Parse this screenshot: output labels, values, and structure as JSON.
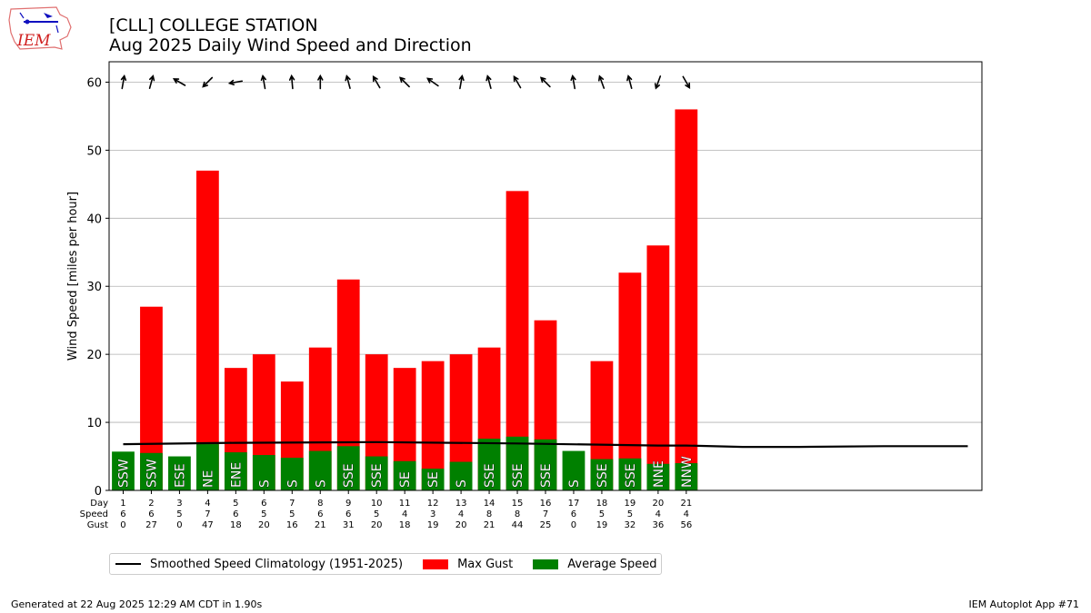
{
  "logo_text": "IEM",
  "title_line1": "[CLL] COLLEGE STATION",
  "title_line2": "Aug 2025 Daily Wind Speed and Direction",
  "footer_left": "Generated at 22 Aug 2025 12:29 AM CDT in 1.90s",
  "footer_right": "IEM Autoplot App #71",
  "colors": {
    "gust": "#ff0000",
    "speed": "#008000",
    "climo": "#000000"
  },
  "legend": [
    {
      "label": "Smoothed Speed Climatology (1951-2025)",
      "kind": "line",
      "color": "#000000"
    },
    {
      "label": "Max Gust",
      "kind": "box",
      "color": "#ff0000"
    },
    {
      "label": "Average Speed",
      "kind": "box",
      "color": "#008000"
    }
  ],
  "chart_data": {
    "type": "bar",
    "ylabel": "Wind Speed [miles per hour]",
    "ylim": [
      0,
      63
    ],
    "yticks": [
      0,
      10,
      20,
      30,
      40,
      50,
      60
    ],
    "xlim": [
      0.5,
      31.5
    ],
    "grid": "y",
    "table_row_labels": [
      "Day",
      "Speed",
      "Gust"
    ],
    "days": [
      1,
      2,
      3,
      4,
      5,
      6,
      7,
      8,
      9,
      10,
      11,
      12,
      13,
      14,
      15,
      16,
      17,
      18,
      19,
      20,
      21
    ],
    "speed_labels": [
      6,
      6,
      5,
      7,
      6,
      5,
      5,
      6,
      6,
      5,
      4,
      3,
      4,
      8,
      8,
      7,
      6,
      5,
      5,
      4,
      4
    ],
    "gust_labels": [
      0,
      27,
      0,
      47,
      18,
      20,
      16,
      21,
      31,
      20,
      18,
      19,
      20,
      21,
      44,
      25,
      0,
      19,
      32,
      36,
      56
    ],
    "series": [
      {
        "name": "Max Gust",
        "values": [
          0,
          27,
          0,
          47,
          18,
          20,
          16,
          21,
          31,
          20,
          18,
          19,
          20,
          21,
          44,
          25,
          0,
          19,
          32,
          36,
          56
        ]
      },
      {
        "name": "Average Speed",
        "values": [
          5.7,
          5.5,
          5.0,
          6.8,
          5.6,
          5.2,
          4.8,
          5.8,
          6.5,
          5.0,
          4.3,
          3.2,
          4.2,
          7.6,
          7.9,
          7.5,
          5.8,
          4.6,
          4.7,
          3.9,
          4.0
        ]
      },
      {
        "name": "Smoothed Speed Climatology (1951-2025)",
        "x": [
          1,
          5,
          10,
          15,
          20,
          21,
          23,
          25,
          28,
          31
        ],
        "values": [
          6.8,
          7.0,
          7.1,
          6.9,
          6.6,
          6.6,
          6.4,
          6.4,
          6.5,
          6.5
        ]
      }
    ],
    "directions": [
      "SSW",
      "SSW",
      "ESE",
      "NE",
      "ENE",
      "S",
      "S",
      "S",
      "SSE",
      "SSE",
      "SE",
      "SE",
      "S",
      "SSE",
      "SSE",
      "SSE",
      "S",
      "SSE",
      "SSE",
      "NNE",
      "NNW"
    ],
    "arrow_angles_deg": [
      80,
      75,
      150,
      225,
      190,
      100,
      95,
      90,
      105,
      120,
      135,
      145,
      80,
      105,
      120,
      135,
      100,
      110,
      105,
      250,
      300
    ]
  }
}
